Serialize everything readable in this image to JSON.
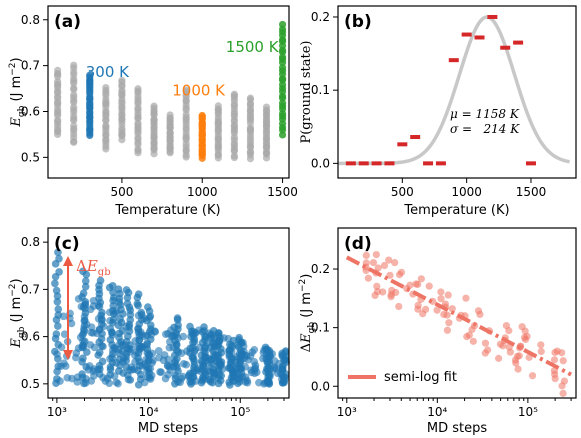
{
  "colors": {
    "gray": "#a9a9a9",
    "blue": "#1f77b4",
    "orange": "#ff7f0e",
    "green": "#2ca02c",
    "red": "#d62728",
    "salmon": "#ee7565",
    "curve": "#c8c8c8",
    "arrow": "#ec5a44"
  },
  "chart_data": [
    {
      "id": "a",
      "type": "scatter",
      "panel_label": "(a)",
      "xlabel": "Temperature (K)",
      "ylabel": "E_gb (J m⁻²)",
      "xlim": [
        40,
        1540
      ],
      "ylim": [
        0.455,
        0.83
      ],
      "xticks": [
        500,
        1000,
        1500
      ],
      "yticks": [
        0.5,
        0.6,
        0.7,
        0.8
      ],
      "annotations": [
        {
          "text": "300 K",
          "color": "blue",
          "x": 300,
          "y": 0.675
        },
        {
          "text": "1000 K",
          "color": "orange",
          "x": 1000,
          "y": 0.635
        },
        {
          "text": "1500 K",
          "color": "green",
          "x": 1500,
          "y": 0.73
        }
      ],
      "columns": [
        {
          "x": 100,
          "ymin": 0.55,
          "ymax": 0.69,
          "color": "gray"
        },
        {
          "x": 200,
          "ymin": 0.53,
          "ymax": 0.7,
          "color": "gray"
        },
        {
          "x": 300,
          "ymin": 0.55,
          "ymax": 0.68,
          "color": "blue"
        },
        {
          "x": 400,
          "ymin": 0.52,
          "ymax": 0.65,
          "color": "gray"
        },
        {
          "x": 500,
          "ymin": 0.54,
          "ymax": 0.67,
          "color": "gray"
        },
        {
          "x": 600,
          "ymin": 0.51,
          "ymax": 0.65,
          "color": "gray"
        },
        {
          "x": 700,
          "ymin": 0.51,
          "ymax": 0.61,
          "color": "gray"
        },
        {
          "x": 800,
          "ymin": 0.51,
          "ymax": 0.59,
          "color": "gray"
        },
        {
          "x": 900,
          "ymin": 0.5,
          "ymax": 0.65,
          "color": "gray"
        },
        {
          "x": 1000,
          "ymin": 0.5,
          "ymax": 0.59,
          "color": "orange"
        },
        {
          "x": 1100,
          "ymin": 0.5,
          "ymax": 0.61,
          "color": "gray"
        },
        {
          "x": 1200,
          "ymin": 0.5,
          "ymax": 0.64,
          "color": "gray"
        },
        {
          "x": 1300,
          "ymin": 0.5,
          "ymax": 0.63,
          "color": "gray"
        },
        {
          "x": 1400,
          "ymin": 0.5,
          "ymax": 0.61,
          "color": "gray"
        },
        {
          "x": 1500,
          "ymin": 0.55,
          "ymax": 0.79,
          "color": "green"
        }
      ]
    },
    {
      "id": "b",
      "type": "bar+line",
      "panel_label": "(b)",
      "xlabel": "Temperature (K)",
      "ylabel": "P(ground state)",
      "xlim": [
        0,
        1850
      ],
      "ylim": [
        -0.02,
        0.215
      ],
      "xticks": [
        500,
        1000,
        1500
      ],
      "yticks": [
        0.0,
        0.1,
        0.2
      ],
      "annotation": [
        "μ = 1158 K",
        "σ =   214 K"
      ],
      "histogram": {
        "x": [
          100,
          200,
          300,
          400,
          500,
          600,
          700,
          800,
          900,
          1000,
          1100,
          1200,
          1300,
          1400,
          1500
        ],
        "values": [
          0.0,
          0.0,
          0.0,
          0.0,
          0.026,
          0.036,
          0.0,
          0.0,
          0.141,
          0.176,
          0.172,
          0.2,
          0.158,
          0.165,
          0.0
        ]
      },
      "gaussian": {
        "mu": 1158,
        "sigma": 214,
        "peak": 0.2
      }
    },
    {
      "id": "c",
      "type": "scatter",
      "panel_label": "(c)",
      "xlabel": "MD steps",
      "ylabel": "E_gb (J m⁻²)",
      "xscale": "log",
      "xlim": [
        800,
        340000
      ],
      "ylim": [
        0.47,
        0.83
      ],
      "xticks": [
        "10³",
        "10⁴",
        "10⁵"
      ],
      "yticks": [
        0.5,
        0.6,
        0.7,
        0.8
      ],
      "annotation": "ΔE_gb",
      "columns": [
        {
          "x": 1000,
          "ymin": 0.5,
          "ymax": 0.78
        },
        {
          "x": 2000,
          "ymin": 0.5,
          "ymax": 0.74
        },
        {
          "x": 3000,
          "ymin": 0.52,
          "ymax": 0.72
        },
        {
          "x": 4000,
          "ymin": 0.52,
          "ymax": 0.71
        },
        {
          "x": 5000,
          "ymin": 0.52,
          "ymax": 0.7
        },
        {
          "x": 6000,
          "ymin": 0.51,
          "ymax": 0.7
        },
        {
          "x": 8000,
          "ymin": 0.5,
          "ymax": 0.69
        },
        {
          "x": 10000,
          "ymin": 0.51,
          "ymax": 0.66
        },
        {
          "x": 20000,
          "ymin": 0.5,
          "ymax": 0.64
        },
        {
          "x": 30000,
          "ymin": 0.5,
          "ymax": 0.62
        },
        {
          "x": 40000,
          "ymin": 0.5,
          "ymax": 0.62
        },
        {
          "x": 50000,
          "ymin": 0.5,
          "ymax": 0.61
        },
        {
          "x": 60000,
          "ymin": 0.5,
          "ymax": 0.61
        },
        {
          "x": 80000,
          "ymin": 0.5,
          "ymax": 0.59
        },
        {
          "x": 100000,
          "ymin": 0.5,
          "ymax": 0.6
        },
        {
          "x": 200000,
          "ymin": 0.5,
          "ymax": 0.58
        },
        {
          "x": 300000,
          "ymin": 0.5,
          "ymax": 0.57
        }
      ]
    },
    {
      "id": "d",
      "type": "scatter",
      "panel_label": "(d)",
      "xlabel": "MD steps",
      "ylabel": "ΔE_gb (J m⁻²)",
      "xscale": "log",
      "xlim": [
        800,
        340000
      ],
      "ylim": [
        -0.02,
        0.27
      ],
      "xticks": [
        "10³",
        "10⁴",
        "10⁵"
      ],
      "yticks": [
        0.0,
        0.1,
        0.2
      ],
      "legend": {
        "label": "semi-log fit",
        "placement": "lower-left"
      },
      "fit": {
        "x": [
          1000,
          300000
        ],
        "y": [
          0.22,
          0.02
        ]
      },
      "points": {
        "n": 100,
        "spread": 0.04
      }
    }
  ]
}
